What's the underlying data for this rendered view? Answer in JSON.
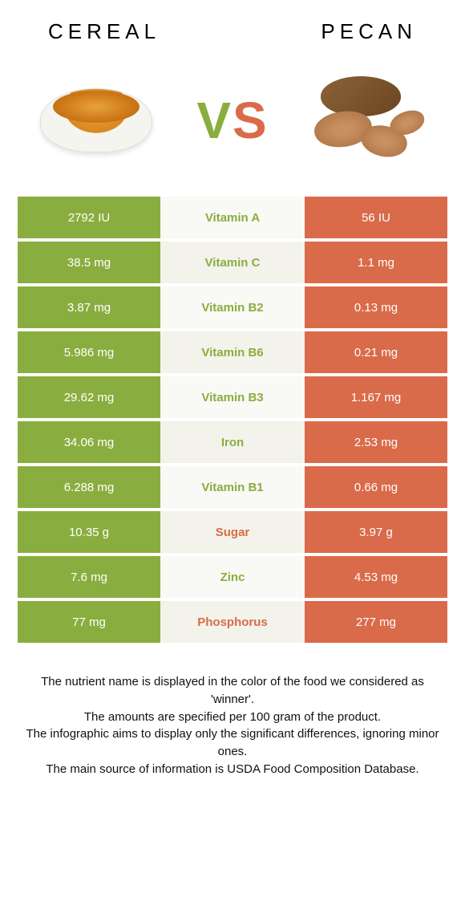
{
  "header": {
    "left": "CEREAL",
    "right": "PECAN"
  },
  "vs": {
    "v": "V",
    "s": "S"
  },
  "colors": {
    "green": "#8aad3f",
    "orange": "#d96b4a",
    "mid_bg": "#f9f9f5",
    "mid_alt_bg": "#f3f3eb"
  },
  "rows": [
    {
      "left": "2792 IU",
      "mid": "Vitamin A",
      "right": "56 IU",
      "winner": "left"
    },
    {
      "left": "38.5 mg",
      "mid": "Vitamin C",
      "right": "1.1 mg",
      "winner": "left"
    },
    {
      "left": "3.87 mg",
      "mid": "Vitamin B2",
      "right": "0.13 mg",
      "winner": "left"
    },
    {
      "left": "5.986 mg",
      "mid": "Vitamin B6",
      "right": "0.21 mg",
      "winner": "left"
    },
    {
      "left": "29.62 mg",
      "mid": "Vitamin B3",
      "right": "1.167 mg",
      "winner": "left"
    },
    {
      "left": "34.06 mg",
      "mid": "Iron",
      "right": "2.53 mg",
      "winner": "left"
    },
    {
      "left": "6.288 mg",
      "mid": "Vitamin B1",
      "right": "0.66 mg",
      "winner": "left"
    },
    {
      "left": "10.35 g",
      "mid": "Sugar",
      "right": "3.97 g",
      "winner": "right"
    },
    {
      "left": "7.6 mg",
      "mid": "Zinc",
      "right": "4.53 mg",
      "winner": "left"
    },
    {
      "left": "77 mg",
      "mid": "Phosphorus",
      "right": "277 mg",
      "winner": "right"
    }
  ],
  "footnotes": [
    "The nutrient name is displayed in the color of the food we considered as 'winner'.",
    "The amounts are specified per 100 gram of the product.",
    "The infographic aims to display only the significant differences, ignoring minor ones.",
    "The main source of information is USDA Food Composition Database."
  ]
}
